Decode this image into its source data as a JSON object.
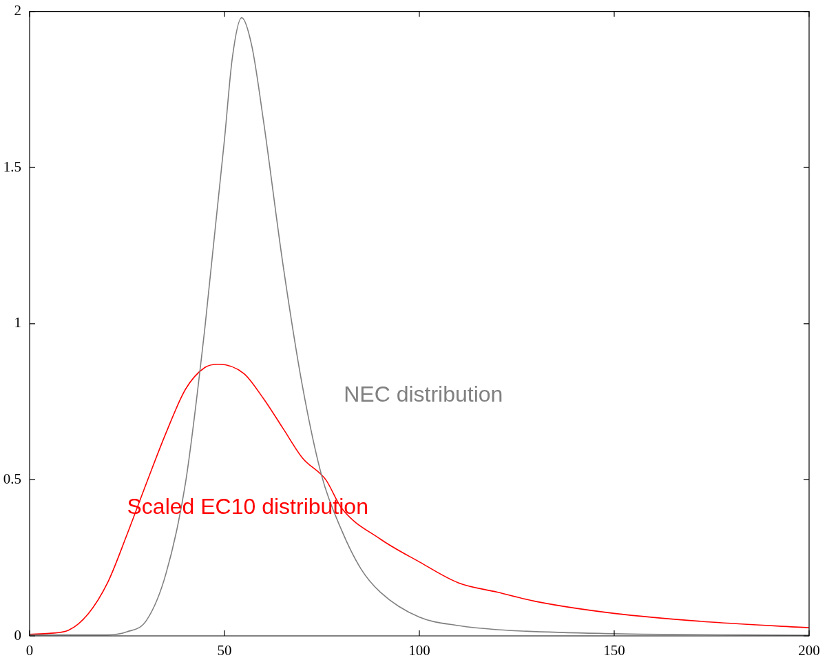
{
  "chart_data": {
    "type": "line",
    "xlim": [
      0,
      200
    ],
    "ylim": [
      0,
      2
    ],
    "xticks": [
      0,
      50,
      100,
      150,
      200
    ],
    "yticks": [
      0,
      {
        "value": 0.5,
        "label": "0.5"
      },
      1,
      {
        "value": 1.5,
        "label": "1.5"
      },
      2
    ],
    "grid": false,
    "legend": false,
    "marker": "none",
    "line_style": "solid",
    "series": [
      {
        "name": "NEC distribution",
        "color": "#808080",
        "x": [
          0,
          20,
          25,
          30,
          35,
          40,
          45,
          50,
          52,
          54.4,
          57,
          60,
          65,
          70,
          75,
          80,
          85,
          90,
          100,
          110,
          120,
          150,
          200
        ],
        "values": [
          0.003,
          0.003,
          0.013,
          0.05,
          0.2,
          0.49,
          0.99,
          1.59,
          1.85,
          1.98,
          1.89,
          1.65,
          1.19,
          0.8,
          0.51,
          0.34,
          0.215,
          0.14,
          0.06,
          0.033,
          0.02,
          0.007,
          0.002
        ]
      },
      {
        "name": "Scaled EC10 distribution",
        "color": "#ff0000",
        "x": [
          0,
          5,
          10,
          15,
          20,
          25,
          30,
          35,
          40,
          45,
          48.5,
          55,
          60,
          65,
          70,
          76,
          80,
          90,
          100,
          110,
          120,
          130,
          150,
          175,
          200
        ],
        "values": [
          0.005,
          0.008,
          0.018,
          0.07,
          0.17,
          0.325,
          0.49,
          0.65,
          0.79,
          0.86,
          0.87,
          0.84,
          0.76,
          0.665,
          0.57,
          0.5,
          0.41,
          0.31,
          0.237,
          0.17,
          0.14,
          0.11,
          0.072,
          0.044,
          0.026
        ]
      }
    ]
  }
}
